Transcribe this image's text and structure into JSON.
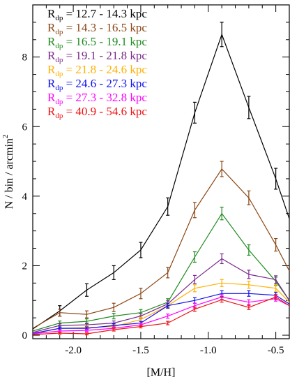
{
  "chart_data": {
    "type": "line",
    "xlabel": "[M/H]",
    "ylabel": "N / bin / arcmin",
    "ylabel_sup": "2",
    "xlim": [
      -2.3,
      -0.4
    ],
    "ylim": [
      -0.1,
      9.5
    ],
    "x_ticks": [
      -2.0,
      -1.5,
      -1.0,
      -0.5
    ],
    "x_tick_labels": [
      "-2.0",
      "-1.5",
      "-1.0",
      "-0.5"
    ],
    "y_ticks": [
      0,
      2,
      4,
      6,
      8
    ],
    "y_tick_labels": [
      "0",
      "2",
      "4",
      "6",
      "8"
    ],
    "legend_position": "top-left",
    "series": [
      {
        "label_main": "R",
        "label_sub": "dp",
        "label_range": " = 12.7 - 14.3 kpc",
        "color": "#000000",
        "x": [
          -2.3,
          -2.1,
          -1.9,
          -1.7,
          -1.5,
          -1.3,
          -1.1,
          -0.9,
          -0.7,
          -0.5,
          -0.4
        ],
        "y": [
          0.18,
          0.7,
          1.3,
          1.8,
          2.45,
          3.7,
          6.4,
          8.65,
          6.55,
          4.5,
          3.35
        ],
        "err": [
          0.0,
          0.15,
          0.18,
          0.2,
          0.22,
          0.25,
          0.3,
          0.35,
          0.32,
          0.3,
          0.0
        ]
      },
      {
        "label_main": "R",
        "label_sub": "dp",
        "label_range": " = 14.3 - 16.5 kpc",
        "color": "#8b4513",
        "x": [
          -2.3,
          -2.1,
          -1.9,
          -1.7,
          -1.5,
          -1.3,
          -1.1,
          -0.9,
          -0.7,
          -0.5,
          -0.4
        ],
        "y": [
          0.2,
          0.65,
          0.6,
          0.8,
          1.2,
          1.8,
          3.6,
          4.78,
          3.95,
          2.6,
          1.85
        ],
        "err": [
          0.0,
          0.1,
          0.1,
          0.12,
          0.15,
          0.15,
          0.22,
          0.22,
          0.2,
          0.18,
          0.0
        ]
      },
      {
        "label_main": "R",
        "label_sub": "dp",
        "label_range": " = 16.5 - 19.1 kpc",
        "color": "#1e8b1e",
        "x": [
          -2.3,
          -2.1,
          -1.9,
          -1.7,
          -1.5,
          -1.3,
          -1.1,
          -0.9,
          -0.7,
          -0.5,
          -0.4
        ],
        "y": [
          0.12,
          0.35,
          0.4,
          0.55,
          0.65,
          0.95,
          2.25,
          3.5,
          2.45,
          1.55,
          1.0
        ],
        "err": [
          0.0,
          0.06,
          0.07,
          0.08,
          0.09,
          0.1,
          0.15,
          0.18,
          0.15,
          0.12,
          0.0
        ]
      },
      {
        "label_main": "R",
        "label_sub": "dp",
        "label_range": " = 19.1 - 21.8 kpc",
        "color": "#7b2a8c",
        "x": [
          -2.3,
          -2.1,
          -1.9,
          -1.7,
          -1.5,
          -1.3,
          -1.1,
          -0.9,
          -0.7,
          -0.5,
          -0.4
        ],
        "y": [
          0.08,
          0.28,
          0.3,
          0.35,
          0.55,
          0.9,
          1.6,
          2.2,
          1.75,
          1.6,
          1.0
        ],
        "err": [
          0.0,
          0.05,
          0.05,
          0.06,
          0.07,
          0.09,
          0.12,
          0.14,
          0.12,
          0.11,
          0.0
        ]
      },
      {
        "label_main": "R",
        "label_sub": "dp",
        "label_range": " = 21.8 - 24.6 kpc",
        "color": "#ffb000",
        "x": [
          -2.3,
          -2.1,
          -1.9,
          -1.7,
          -1.5,
          -1.3,
          -1.1,
          -0.9,
          -0.7,
          -0.5,
          -0.4
        ],
        "y": [
          0.05,
          0.2,
          0.22,
          0.25,
          0.45,
          0.85,
          1.35,
          1.5,
          1.45,
          1.35,
          0.95
        ],
        "err": [
          0.0,
          0.04,
          0.04,
          0.05,
          0.06,
          0.08,
          0.1,
          0.1,
          0.1,
          0.1,
          0.0
        ]
      },
      {
        "label_main": "R",
        "label_sub": "dp",
        "label_range": " = 24.6 - 27.3 kpc",
        "color": "#1010ee",
        "x": [
          -2.3,
          -2.1,
          -1.9,
          -1.7,
          -1.5,
          -1.3,
          -1.1,
          -0.9,
          -0.7,
          -0.5,
          -0.4
        ],
        "y": [
          0.05,
          0.2,
          0.2,
          0.28,
          0.35,
          0.85,
          1.0,
          1.2,
          1.2,
          1.15,
          0.9
        ],
        "err": [
          0.0,
          0.04,
          0.04,
          0.05,
          0.05,
          0.07,
          0.08,
          0.08,
          0.08,
          0.08,
          0.0
        ]
      },
      {
        "label_main": "R",
        "label_sub": "dp",
        "label_range": " = 27.3 - 32.8 kpc",
        "color": "#ff00ff",
        "x": [
          -2.3,
          -2.1,
          -1.9,
          -1.7,
          -1.5,
          -1.3,
          -1.1,
          -0.9,
          -0.7,
          -0.5,
          -0.4
        ],
        "y": [
          0.04,
          0.12,
          0.14,
          0.2,
          0.3,
          0.55,
          0.85,
          1.1,
          0.95,
          1.05,
          0.85
        ],
        "err": [
          0.0,
          0.03,
          0.03,
          0.04,
          0.04,
          0.06,
          0.07,
          0.07,
          0.07,
          0.07,
          0.0
        ]
      },
      {
        "label_main": "R",
        "label_sub": "dp",
        "label_range": " = 40.9 - 54.6 kpc",
        "color": "#ee1111",
        "x": [
          -2.3,
          -2.1,
          -1.9,
          -1.7,
          -1.5,
          -1.3,
          -1.1,
          -0.9,
          -0.7,
          -0.5,
          -0.4
        ],
        "y": [
          0.02,
          0.06,
          0.04,
          0.16,
          0.25,
          0.35,
          0.75,
          1.02,
          0.8,
          1.1,
          0.85
        ],
        "err": [
          0.0,
          0.03,
          0.03,
          0.04,
          0.04,
          0.05,
          0.06,
          0.07,
          0.06,
          0.07,
          0.0
        ]
      }
    ]
  }
}
